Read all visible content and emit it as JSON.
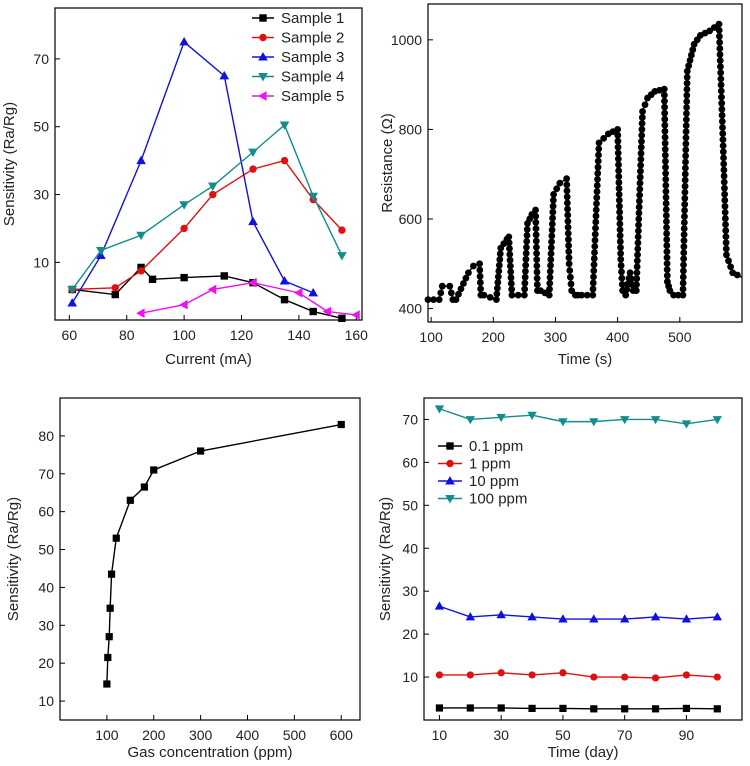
{
  "chart_data": [
    {
      "type": "line",
      "xlabel": "Current (mA)",
      "ylabel": "Sensitivity (Ra/Rg)",
      "xlim": [
        55,
        162
      ],
      "ylim": [
        -7,
        85
      ],
      "xticks": [
        60,
        80,
        100,
        120,
        140,
        160
      ],
      "yticks": [
        10,
        30,
        50,
        70
      ],
      "legend": "top-right",
      "series": [
        {
          "name": "Sample 1",
          "color": "#000000",
          "marker": "square",
          "x": [
            61,
            76,
            85,
            89,
            100,
            114,
            124,
            135,
            145,
            155
          ],
          "y": [
            2,
            0.5,
            8.5,
            5,
            5.5,
            6,
            4,
            -1,
            -4.5,
            -6.5
          ]
        },
        {
          "name": "Sample 2",
          "color": "#e01010",
          "marker": "circle",
          "x": [
            61,
            76,
            85,
            100,
            110,
            124,
            135,
            145,
            155
          ],
          "y": [
            2,
            2.5,
            7.5,
            20,
            30,
            37.5,
            40,
            28.5,
            19.5
          ]
        },
        {
          "name": "Sample 3",
          "color": "#1010e0",
          "marker": "triangle-up",
          "x": [
            61,
            71,
            85,
            100,
            114,
            124,
            135,
            145
          ],
          "y": [
            -2,
            12,
            40,
            75,
            65,
            22,
            4.5,
            1
          ]
        },
        {
          "name": "Sample 4",
          "color": "#138c8c",
          "marker": "triangle-down",
          "x": [
            61,
            71,
            85,
            100,
            110,
            124,
            135,
            145,
            155
          ],
          "y": [
            2,
            13.5,
            18,
            27,
            32.5,
            42.5,
            50.5,
            29.5,
            12
          ]
        },
        {
          "name": "Sample 5",
          "color": "#ee10ee",
          "marker": "triangle-left",
          "x": [
            85,
            100,
            110,
            124,
            140,
            150,
            160
          ],
          "y": [
            -5,
            -2.5,
            2,
            4,
            1,
            -4.5,
            -5.5
          ]
        }
      ]
    },
    {
      "type": "line",
      "xlabel": "Time (s)",
      "ylabel": "Resistance (Ω)",
      "xlim": [
        95,
        600
      ],
      "ylim": [
        370,
        1080
      ],
      "xticks": [
        100,
        200,
        300,
        400,
        500
      ],
      "yticks": [
        400,
        600,
        800,
        1000
      ],
      "series": [
        {
          "name": "",
          "color": "#000000",
          "x": [
            95,
            113,
            118,
            130,
            135,
            140,
            160,
            168,
            178,
            180,
            185,
            205,
            212,
            222,
            225,
            230,
            250,
            255,
            262,
            268,
            271,
            276,
            290,
            297,
            307,
            318,
            322,
            326,
            332,
            336,
            342,
            360,
            370,
            385,
            400,
            405,
            408,
            413,
            420,
            425,
            430,
            440,
            448,
            460,
            475,
            480,
            484,
            490,
            505,
            512,
            523,
            533,
            548,
            563,
            570,
            575,
            585,
            600
          ],
          "y": [
            420,
            420,
            450,
            450,
            420,
            420,
            480,
            495,
            500,
            430,
            430,
            420,
            535,
            555,
            560,
            430,
            430,
            590,
            610,
            620,
            440,
            440,
            430,
            655,
            680,
            690,
            500,
            440,
            430,
            430,
            430,
            430,
            770,
            790,
            800,
            510,
            440,
            430,
            480,
            440,
            440,
            840,
            870,
            885,
            890,
            460,
            440,
            430,
            430,
            930,
            990,
            1010,
            1020,
            1035,
            750,
            520,
            480,
            470
          ]
        }
      ]
    },
    {
      "type": "line",
      "xlabel": "Gas concentration (ppm)",
      "ylabel": "Sensitivity (Ra/Rg)",
      "xlim": [
        0,
        640
      ],
      "ylim": [
        5,
        90
      ],
      "xticks": [
        100,
        200,
        300,
        400,
        500,
        600
      ],
      "yticks": [
        10,
        20,
        30,
        40,
        50,
        60,
        70,
        80
      ],
      "series": [
        {
          "name": "",
          "color": "#000000",
          "marker": "square",
          "x": [
            100,
            102,
            105,
            107,
            110,
            120,
            150,
            180,
            200,
            300,
            600
          ],
          "y": [
            14.5,
            21.5,
            27,
            34.5,
            43.5,
            53,
            63,
            66.5,
            71,
            76,
            83
          ]
        }
      ]
    },
    {
      "type": "line",
      "xlabel": "Time (day)",
      "ylabel": "Sensitivity (Ra/Rg)",
      "xlim": [
        5,
        108
      ],
      "ylim": [
        0,
        75
      ],
      "xticks": [
        10,
        30,
        50,
        70,
        90
      ],
      "yticks": [
        10,
        20,
        30,
        40,
        50,
        60,
        70
      ],
      "legend": "top-left",
      "series": [
        {
          "name": "0.1 ppm",
          "color": "#000000",
          "marker": "square",
          "x": [
            10,
            20,
            30,
            40,
            50,
            60,
            70,
            80,
            90,
            100
          ],
          "y": [
            2.8,
            2.8,
            2.8,
            2.7,
            2.7,
            2.6,
            2.6,
            2.6,
            2.7,
            2.6
          ]
        },
        {
          "name": "1 ppm",
          "color": "#e01010",
          "marker": "circle",
          "x": [
            10,
            20,
            30,
            40,
            50,
            60,
            70,
            80,
            90,
            100
          ],
          "y": [
            10.5,
            10.5,
            11,
            10.5,
            11,
            10,
            10,
            9.8,
            10.5,
            10
          ]
        },
        {
          "name": "10 ppm",
          "color": "#1010e0",
          "marker": "triangle-up",
          "x": [
            10,
            20,
            30,
            40,
            50,
            60,
            70,
            80,
            90,
            100
          ],
          "y": [
            26.5,
            24,
            24.5,
            24,
            23.5,
            23.5,
            23.5,
            24,
            23.5,
            24
          ]
        },
        {
          "name": "100 ppm",
          "color": "#138c8c",
          "marker": "triangle-down",
          "x": [
            10,
            20,
            30,
            40,
            50,
            60,
            70,
            80,
            90,
            100
          ],
          "y": [
            72.5,
            70,
            70.5,
            71,
            69.5,
            69.5,
            70,
            70,
            69,
            70
          ]
        }
      ]
    }
  ]
}
